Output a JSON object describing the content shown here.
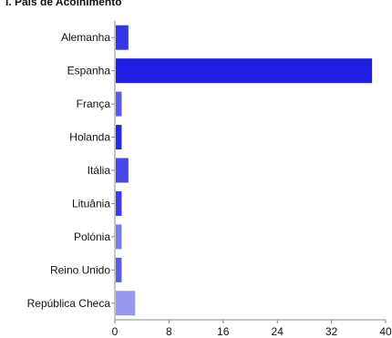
{
  "chart_data": {
    "type": "bar",
    "orientation": "horizontal",
    "title": "I. País de Acolhimento",
    "xlabel": "",
    "ylabel": "",
    "categories": [
      "Alemanha",
      "Espanha",
      "França",
      "Holanda",
      "Itália",
      "Lituânia",
      "Polónia",
      "Reino Unido",
      "República Checa"
    ],
    "values": [
      2,
      38,
      1,
      1,
      2,
      1,
      1,
      1,
      3
    ],
    "bar_colors": [
      "#3535e8",
      "#1f1fe6",
      "#5a5ae8",
      "#2828e6",
      "#4848e8",
      "#3c3ce8",
      "#7c7ced",
      "#5c5ce9",
      "#9898f2"
    ],
    "xlim": [
      0,
      40
    ],
    "xticks": [
      0,
      8,
      16,
      24,
      32,
      40
    ],
    "grid": false,
    "legend": "none"
  }
}
